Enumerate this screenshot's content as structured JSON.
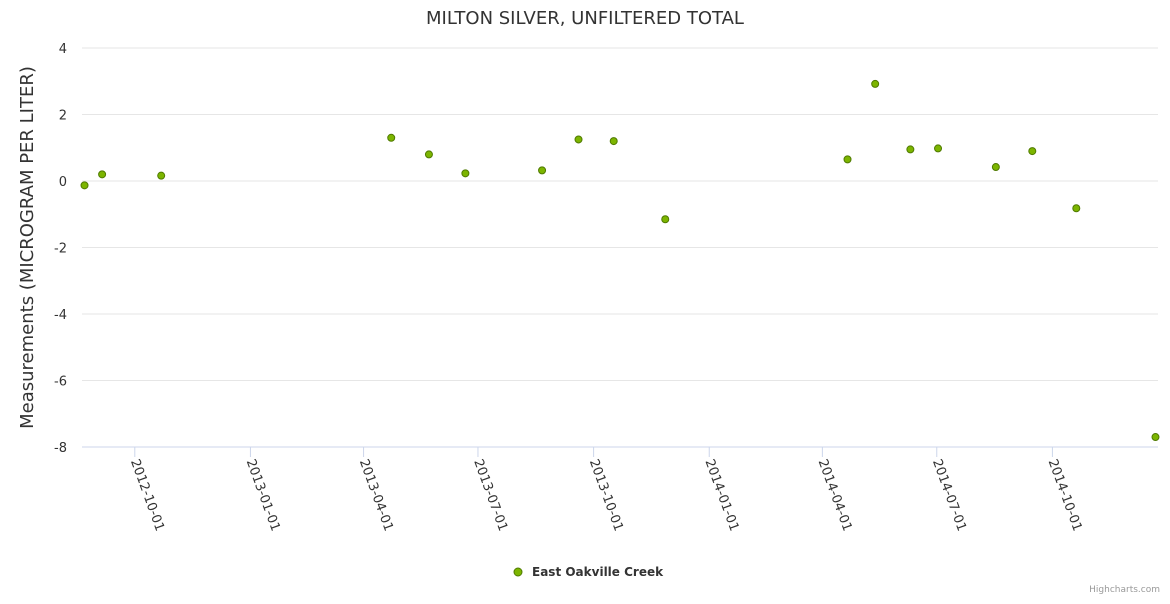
{
  "chart_data": {
    "type": "scatter",
    "title": "MILTON SILVER, UNFILTERED TOTAL",
    "ylabel": "Measurements (MICROGRAM PER LITER)",
    "xlabel": "",
    "ylim": [
      -8,
      4
    ],
    "yticks": [
      4,
      2,
      0,
      -2,
      -4,
      -6,
      -8
    ],
    "xlim": [
      "2012-08-20",
      "2014-12-24"
    ],
    "xticks": [
      "2012-10-01",
      "2013-01-01",
      "2013-04-01",
      "2013-07-01",
      "2013-10-01",
      "2014-01-01",
      "2014-04-01",
      "2014-07-01",
      "2014-10-01"
    ],
    "grid": true,
    "legend_position": "bottom-center",
    "color": "#7cb500",
    "series": [
      {
        "name": "East Oakville Creek",
        "points": [
          {
            "x": "2012-08-22",
            "y": -0.13
          },
          {
            "x": "2012-09-05",
            "y": 0.2
          },
          {
            "x": "2012-10-22",
            "y": 0.16
          },
          {
            "x": "2013-04-23",
            "y": 1.3
          },
          {
            "x": "2013-05-23",
            "y": 0.8
          },
          {
            "x": "2013-06-21",
            "y": 0.23
          },
          {
            "x": "2013-08-21",
            "y": 0.32
          },
          {
            "x": "2013-09-19",
            "y": 1.25
          },
          {
            "x": "2013-10-17",
            "y": 1.2
          },
          {
            "x": "2013-11-27",
            "y": -1.15
          },
          {
            "x": "2014-04-21",
            "y": 0.65
          },
          {
            "x": "2014-05-13",
            "y": 2.92
          },
          {
            "x": "2014-06-10",
            "y": 0.95
          },
          {
            "x": "2014-07-02",
            "y": 0.98
          },
          {
            "x": "2014-08-17",
            "y": 0.42
          },
          {
            "x": "2014-09-15",
            "y": 0.9
          },
          {
            "x": "2014-10-20",
            "y": -0.82
          },
          {
            "x": "2014-12-22",
            "y": -7.7
          }
        ]
      }
    ]
  },
  "credits": "Highcharts.com"
}
